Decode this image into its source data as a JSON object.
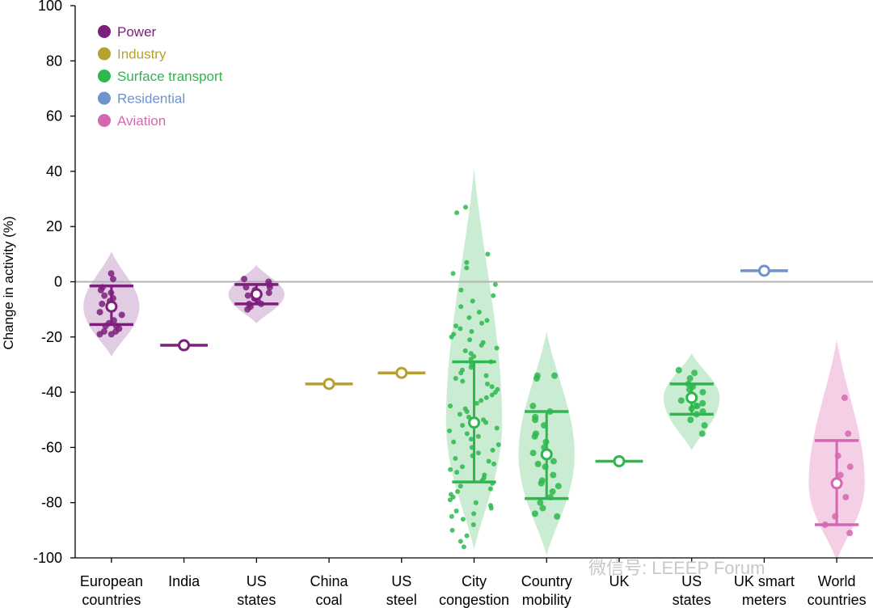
{
  "chart_data": {
    "type": "violin",
    "ylabel": "Change in activity (%)",
    "ylim": [
      -100,
      100
    ],
    "yticks": [
      100,
      80,
      60,
      40,
      20,
      0,
      -20,
      -40,
      -60,
      -80,
      -100
    ],
    "legend_position": "top-left",
    "legend": [
      {
        "name": "Power",
        "color": "#7b1f7a"
      },
      {
        "name": "Industry",
        "color": "#b5a030"
      },
      {
        "name": "Surface transport",
        "color": "#2db84e"
      },
      {
        "name": "Residential",
        "color": "#6f93cc"
      },
      {
        "name": "Aviation",
        "color": "#d468b0"
      }
    ],
    "categories": [
      {
        "label": [
          "European",
          "countries"
        ],
        "sector": "Power",
        "color": "#7b1f7a",
        "fill": "#e2cce3",
        "median": -9,
        "q1": -15.5,
        "q3": -1.5,
        "violin_range": [
          -27,
          11
        ],
        "points": [
          3,
          1,
          -3,
          -5,
          -7,
          -9,
          -11,
          -12,
          -14,
          -15,
          -16,
          -17,
          -18,
          -19,
          -19,
          -18,
          -16,
          -8,
          -6,
          -4,
          -2
        ]
      },
      {
        "label": [
          "India"
        ],
        "sector": "Power",
        "color": "#7b1f7a",
        "median": -23
      },
      {
        "label": [
          "US",
          "states"
        ],
        "sector": "Power",
        "color": "#7b1f7a",
        "fill": "#e2cce3",
        "median": -4.5,
        "q1": -8,
        "q3": -1,
        "violin_range": [
          -15,
          6
        ],
        "points": [
          1,
          0,
          -1,
          -2,
          -3,
          -4,
          -5,
          -6,
          -7,
          -8,
          -9,
          -10,
          -2,
          -6,
          -8,
          -4
        ]
      },
      {
        "label": [
          "China",
          "coal"
        ],
        "sector": "Industry",
        "color": "#b5a030",
        "median": -37
      },
      {
        "label": [
          "US",
          "steel"
        ],
        "sector": "Industry",
        "color": "#b5a030",
        "median": -33
      },
      {
        "label": [
          "City",
          "congestion"
        ],
        "sector": "Surface transport",
        "color": "#2db84e",
        "fill": "#c9ecd2",
        "median": -51,
        "q1": -72.5,
        "q3": -29,
        "violin_range": [
          -97,
          41
        ],
        "points": [
          27,
          25,
          10,
          7,
          5,
          3,
          -1,
          -3,
          -5,
          -7,
          -9,
          -11,
          -13,
          -14,
          -15,
          -16,
          -17,
          -18,
          -19,
          -20,
          -21,
          -22,
          -23,
          -24,
          -25,
          -26,
          -27,
          -28,
          -29,
          -30,
          -31,
          -32,
          -33,
          -34,
          -35,
          -36,
          -37,
          -38,
          -39,
          -40,
          -41,
          -42,
          -43,
          -44,
          -45,
          -46,
          -47,
          -48,
          -49,
          -50,
          -51,
          -52,
          -53,
          -54,
          -55,
          -56,
          -57,
          -58,
          -59,
          -60,
          -61,
          -62,
          -63,
          -64,
          -65,
          -66,
          -67,
          -68,
          -69,
          -70,
          -71,
          -72,
          -73,
          -74,
          -75,
          -76,
          -77,
          -78,
          -79,
          -80,
          -81,
          -82,
          -83,
          -84,
          -85,
          -86,
          -88,
          -90,
          -92,
          -94,
          -96
        ]
      },
      {
        "label": [
          "Country",
          "mobility"
        ],
        "sector": "Surface transport",
        "color": "#2db84e",
        "fill": "#c9ecd2",
        "median": -62.5,
        "q1": -78.5,
        "q3": -47,
        "violin_range": [
          -99,
          -18
        ],
        "points": [
          -34,
          -35,
          -34,
          -45,
          -47,
          -49,
          -52,
          -55,
          -58,
          -60,
          -62,
          -65,
          -67,
          -70,
          -72,
          -74,
          -76,
          -78,
          -80,
          -82,
          -84,
          -85,
          -50,
          -56,
          -66,
          -73
        ]
      },
      {
        "label": [
          "UK"
        ],
        "sector": "Surface transport",
        "color": "#2db84e",
        "median": -65
      },
      {
        "label": [
          "US",
          "states"
        ],
        "sector": "Surface transport",
        "color": "#2db84e",
        "fill": "#c9ecd2",
        "median": -42,
        "q1": -48,
        "q3": -37,
        "violin_range": [
          -61,
          -26
        ],
        "points": [
          -32,
          -33,
          -35,
          -37,
          -38,
          -40,
          -41,
          -42,
          -43,
          -44,
          -45,
          -46,
          -47,
          -48,
          -50,
          -52,
          -55,
          -39,
          -43,
          -45
        ]
      },
      {
        "label": [
          "UK smart",
          "meters"
        ],
        "sector": "Residential",
        "color": "#6f93cc",
        "median": 4
      },
      {
        "label": [
          "World",
          "countries"
        ],
        "sector": "Aviation",
        "color": "#d468b0",
        "fill": "#f5cfe6",
        "median": -73,
        "q1": -88,
        "q3": -57.5,
        "violin_range": [
          -101,
          -21
        ],
        "points": [
          -42,
          -55,
          -63,
          -67,
          -70,
          -78,
          -85,
          -88,
          -91
        ]
      }
    ]
  },
  "watermark": "微信号: LEEEP  Forum"
}
